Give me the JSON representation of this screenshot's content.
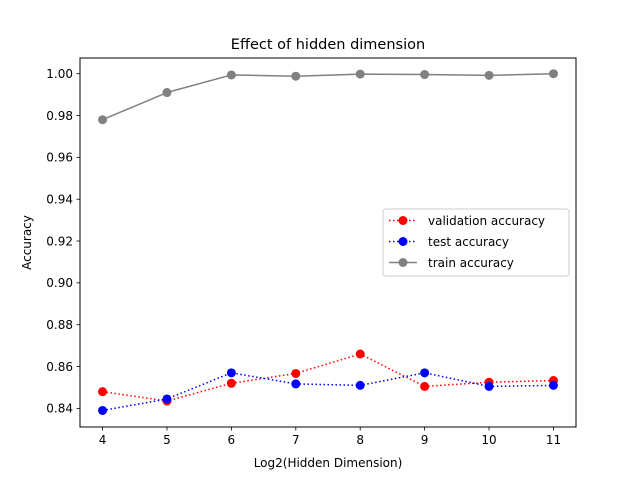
{
  "chart_data": {
    "type": "line",
    "title": "Effect of hidden dimension",
    "xlabel": "Log2(Hidden Dimension)",
    "ylabel": "Accuracy",
    "x": [
      4,
      5,
      6,
      7,
      8,
      9,
      10,
      11
    ],
    "xticks": [
      "4",
      "5",
      "6",
      "7",
      "8",
      "9",
      "10",
      "11"
    ],
    "yticks": [
      "0.84",
      "0.86",
      "0.88",
      "0.90",
      "0.92",
      "0.94",
      "0.96",
      "0.98",
      "1.00"
    ],
    "xlim": [
      3.65,
      11.35
    ],
    "ylim": [
      0.8311,
      1.0075
    ],
    "grid": false,
    "legend_position": "center-right",
    "series": [
      {
        "name": "validation accuracy",
        "color": "#ff0000",
        "line_style": "dotted",
        "marker": "circle",
        "values": [
          0.848,
          0.8435,
          0.852,
          0.8567,
          0.866,
          0.8505,
          0.8525,
          0.8533
        ]
      },
      {
        "name": "test accuracy",
        "color": "#0000ff",
        "line_style": "dotted",
        "marker": "circle",
        "values": [
          0.839,
          0.8445,
          0.857,
          0.8517,
          0.851,
          0.857,
          0.8505,
          0.851
        ]
      },
      {
        "name": "train accuracy",
        "color": "#808080",
        "line_style": "solid",
        "marker": "circle",
        "values": [
          0.978,
          0.991,
          0.9994,
          0.9988,
          0.9998,
          0.9996,
          0.9992,
          1.0
        ]
      }
    ]
  }
}
